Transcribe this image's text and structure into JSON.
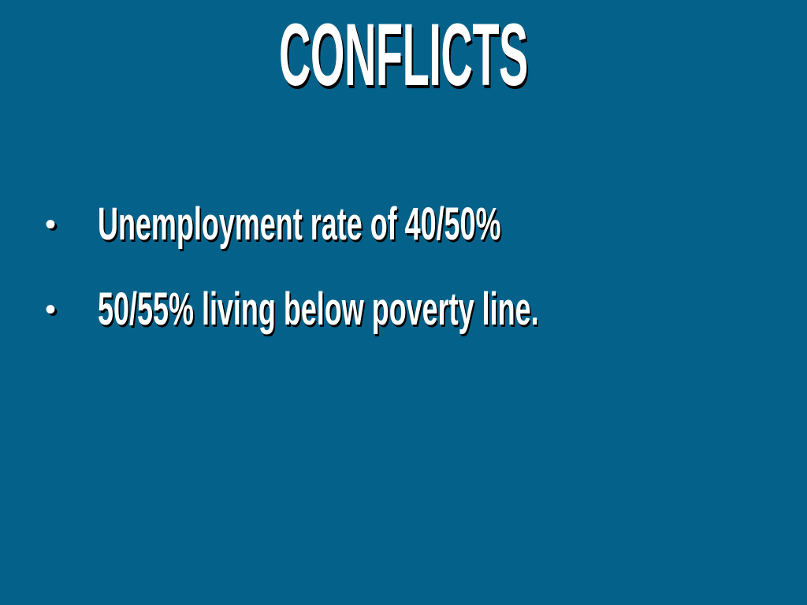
{
  "slide": {
    "title": "CONFLICTS",
    "bullets": [
      {
        "text": "Unemployment rate of 40/50%"
      },
      {
        "text": "50/55% living below poverty line."
      }
    ],
    "bullet_glyph": "•",
    "colors": {
      "background": "#04628a",
      "text": "#ffffff",
      "shadow": "#000000"
    }
  }
}
